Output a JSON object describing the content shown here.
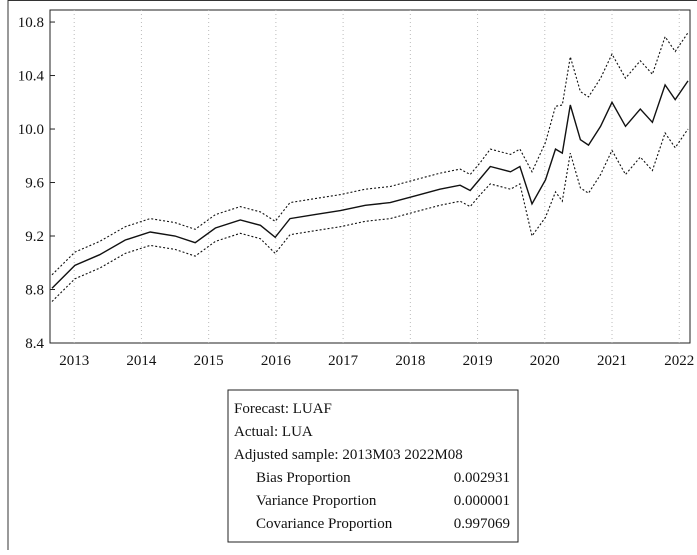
{
  "chart_data": {
    "type": "line",
    "x": [
      2013.17,
      2013.51,
      2013.88,
      2014.26,
      2014.63,
      2015.0,
      2015.3,
      2015.6,
      2015.97,
      2016.27,
      2016.49,
      2016.71,
      2017.08,
      2017.46,
      2017.83,
      2018.2,
      2018.57,
      2018.94,
      2019.24,
      2019.39,
      2019.54,
      2019.69,
      2019.99,
      2020.13,
      2020.31,
      2020.51,
      2020.66,
      2020.76,
      2020.88,
      2021.03,
      2021.15,
      2021.33,
      2021.5,
      2021.7,
      2021.92,
      2022.1,
      2022.29,
      2022.44,
      2022.63
    ],
    "series": [
      {
        "color": "#111111",
        "dash": "solid",
        "values": [
          8.81,
          8.98,
          9.06,
          9.17,
          9.23,
          9.2,
          9.15,
          9.26,
          9.32,
          9.28,
          9.19,
          9.33,
          9.36,
          9.39,
          9.43,
          9.45,
          9.5,
          9.55,
          9.58,
          9.54,
          9.63,
          9.72,
          9.68,
          9.72,
          9.44,
          9.62,
          9.85,
          9.82,
          10.18,
          9.92,
          9.88,
          10.02,
          10.2,
          10.02,
          10.15,
          10.05,
          10.33,
          10.22,
          10.36
        ]
      },
      {
        "color": "#111111",
        "dash": "dotted",
        "values": [
          8.91,
          9.08,
          9.16,
          9.27,
          9.33,
          9.3,
          9.25,
          9.36,
          9.42,
          9.38,
          9.31,
          9.45,
          9.48,
          9.51,
          9.55,
          9.57,
          9.62,
          9.67,
          9.7,
          9.66,
          9.75,
          9.85,
          9.81,
          9.85,
          9.68,
          9.9,
          10.17,
          10.18,
          10.54,
          10.28,
          10.24,
          10.38,
          10.56,
          10.38,
          10.51,
          10.41,
          10.69,
          10.58,
          10.72
        ]
      },
      {
        "color": "#111111",
        "dash": "dotted",
        "values": [
          8.71,
          8.88,
          8.96,
          9.07,
          9.13,
          9.1,
          9.05,
          9.16,
          9.22,
          9.18,
          9.07,
          9.21,
          9.24,
          9.27,
          9.31,
          9.33,
          9.38,
          9.43,
          9.46,
          9.42,
          9.51,
          9.59,
          9.55,
          9.59,
          9.2,
          9.34,
          9.53,
          9.46,
          9.82,
          9.56,
          9.52,
          9.66,
          9.84,
          9.66,
          9.79,
          9.69,
          9.97,
          9.86,
          10.0
        ]
      }
    ],
    "xlim": [
      2013.14,
      2022.66
    ],
    "xticks": [
      {
        "value": 2013.5,
        "label": "2013"
      },
      {
        "value": 2014.5,
        "label": "2014"
      },
      {
        "value": 2015.5,
        "label": "2015"
      },
      {
        "value": 2016.5,
        "label": "2016"
      },
      {
        "value": 2017.5,
        "label": "2017"
      },
      {
        "value": 2018.5,
        "label": "2018"
      },
      {
        "value": 2019.5,
        "label": "2019"
      },
      {
        "value": 2020.5,
        "label": "2020"
      },
      {
        "value": 2021.5,
        "label": "2021"
      },
      {
        "value": 2022.5,
        "label": "2022"
      }
    ],
    "ylim": [
      8.4,
      10.89
    ],
    "yticks": [
      8.4,
      8.8,
      9.2,
      9.6,
      {
        "value": 10,
        "label": "10.0"
      },
      10.4,
      10.8
    ],
    "grid": true
  },
  "stats": {
    "lines": [
      "Forecast: LUAF",
      "Actual: LUA",
      "Adjusted sample: 2013M03 2022M08"
    ],
    "rows": [
      [
        "Bias Proportion",
        "0.002931"
      ],
      [
        "Variance Proportion",
        "0.000001"
      ],
      [
        "Covariance Proportion",
        "0.997069"
      ]
    ]
  }
}
